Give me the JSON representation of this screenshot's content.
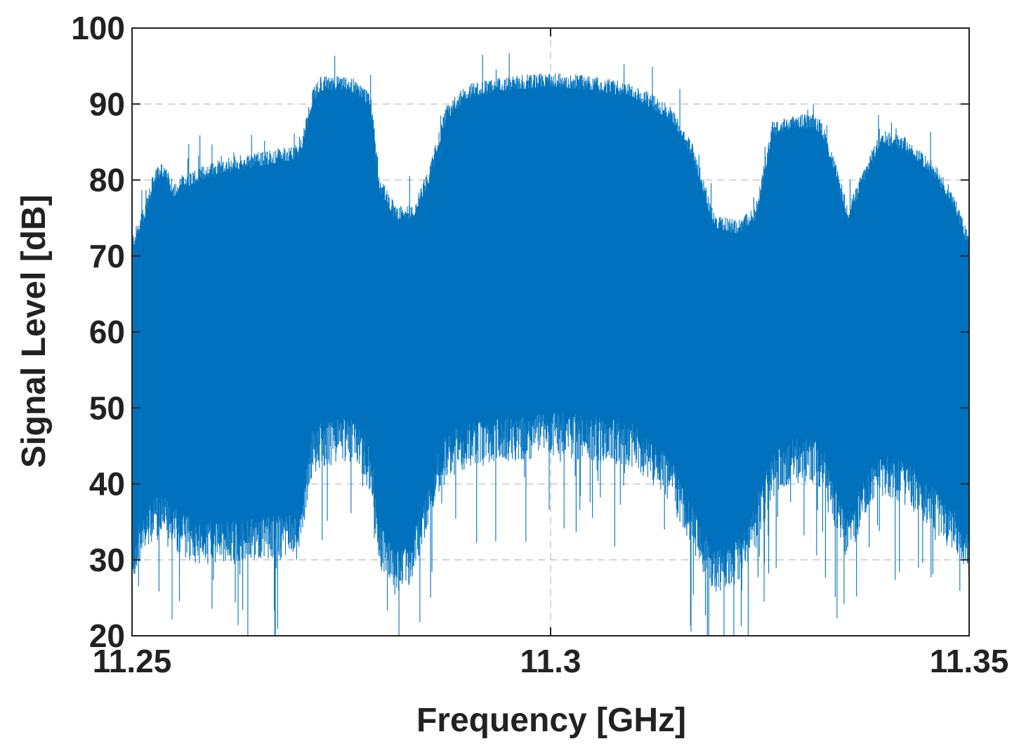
{
  "chart_data": {
    "type": "line",
    "title": "",
    "xlabel": "Frequency [GHz]",
    "ylabel": "Signal Level [dB]",
    "xlim": [
      11.25,
      11.35
    ],
    "ylim": [
      20,
      100
    ],
    "x_ticks": [
      11.25,
      11.3,
      11.35
    ],
    "x_tick_labels": [
      "11.25",
      "11.3",
      "11.35"
    ],
    "y_ticks": [
      20,
      30,
      40,
      50,
      60,
      70,
      80,
      90,
      100
    ],
    "y_tick_labels": [
      "20",
      "30",
      "40",
      "50",
      "60",
      "70",
      "80",
      "90",
      "100"
    ],
    "grid": true,
    "legend": "none",
    "series": [
      {
        "color": "#0072BD",
        "description_of_trace": "dense spectrum; upper envelope and lower envelope (dB) sampled across frequency",
        "x": [
          11.25,
          11.2515,
          11.2525,
          11.2535,
          11.255,
          11.256,
          11.26,
          11.265,
          11.27,
          11.2715,
          11.2725,
          11.276,
          11.2785,
          11.2795,
          11.2815,
          11.2835,
          11.2855,
          11.2875,
          11.29,
          11.295,
          11.3,
          11.305,
          11.31,
          11.3145,
          11.317,
          11.3195,
          11.3225,
          11.3245,
          11.3265,
          11.329,
          11.3315,
          11.3325,
          11.3345,
          11.3355,
          11.3375,
          11.3395,
          11.3425,
          11.3455,
          11.348,
          11.35
        ],
        "upper": [
          72,
          76,
          80,
          82,
          79,
          80,
          82,
          83,
          84,
          91,
          93,
          93,
          91,
          80,
          76,
          76,
          81,
          89,
          92,
          93,
          93.5,
          93,
          92,
          89,
          84,
          75,
          74,
          76,
          87,
          88,
          88,
          87,
          80,
          76,
          81,
          86,
          85,
          82,
          78,
          72
        ],
        "lower": [
          30,
          33,
          35,
          36,
          34,
          33,
          32,
          33,
          33,
          44,
          45,
          46,
          42,
          32,
          28,
          30,
          38,
          44,
          45,
          46,
          46.5,
          46,
          45,
          40,
          34,
          28,
          30,
          35,
          41,
          43,
          43,
          42,
          35,
          33,
          38,
          41,
          40,
          37,
          34,
          30
        ],
        "min_spikes": 20,
        "max_spikes": 99.5
      }
    ]
  }
}
